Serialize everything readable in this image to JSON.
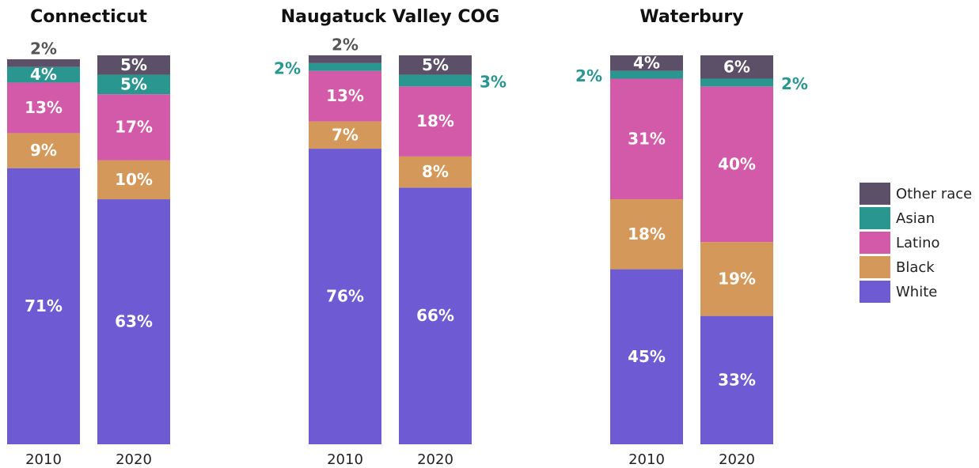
{
  "chart_data": {
    "type": "bar",
    "stacked": true,
    "ylim": [
      0,
      100
    ],
    "legend": "right",
    "categories": [
      "2010",
      "2020"
    ],
    "panels": [
      {
        "title": "Connecticut"
      },
      {
        "title": "Naugatuck Valley COG"
      },
      {
        "title": "Waterbury"
      }
    ],
    "series": [
      {
        "name": "White",
        "color": "#6e5bd4",
        "values": [
          [
            71,
            63
          ],
          [
            76,
            66
          ],
          [
            45,
            33
          ]
        ],
        "value_labels": [
          [
            "71%",
            "63%"
          ],
          [
            "76%",
            "66%"
          ],
          [
            "45%",
            "33%"
          ]
        ]
      },
      {
        "name": "Black",
        "color": "#d4995a",
        "values": [
          [
            9,
            10
          ],
          [
            7,
            8
          ],
          [
            18,
            19
          ]
        ],
        "value_labels": [
          [
            "9%",
            "10%"
          ],
          [
            "7%",
            "8%"
          ],
          [
            "18%",
            "19%"
          ]
        ]
      },
      {
        "name": "Latino",
        "color": "#d35aa8",
        "values": [
          [
            13,
            17
          ],
          [
            13,
            18
          ],
          [
            31,
            40
          ]
        ],
        "value_labels": [
          [
            "13%",
            "17%"
          ],
          [
            "13%",
            "18%"
          ],
          [
            "31%",
            "40%"
          ]
        ]
      },
      {
        "name": "Asian",
        "color": "#2a9690",
        "values": [
          [
            4,
            5
          ],
          [
            2,
            3
          ],
          [
            2,
            2
          ]
        ],
        "value_labels": [
          [
            "4%",
            "5%"
          ],
          [
            "2%",
            "3%"
          ],
          [
            "2%",
            "2%"
          ]
        ]
      },
      {
        "name": "Other race",
        "color": "#5c5068",
        "values": [
          [
            2,
            5
          ],
          [
            2,
            5
          ],
          [
            4,
            6
          ]
        ],
        "value_labels": [
          [
            "2%",
            "5%"
          ],
          [
            "2%",
            "5%"
          ],
          [
            "4%",
            "6%"
          ]
        ]
      }
    ]
  }
}
